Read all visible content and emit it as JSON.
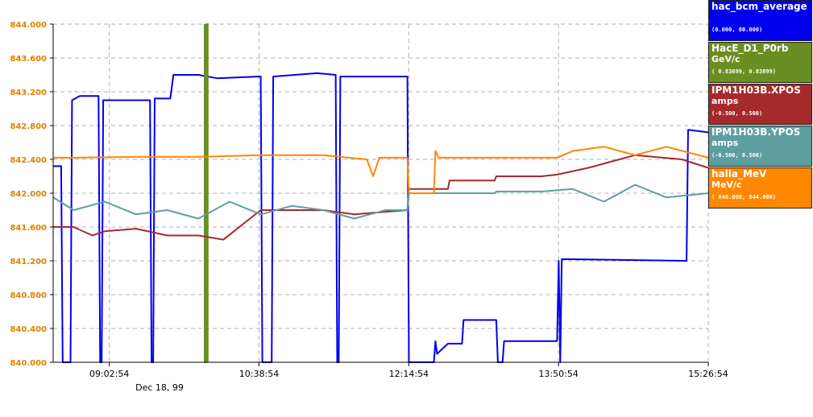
{
  "chart_data": {
    "type": "line",
    "title": "",
    "xlabel": "",
    "ylabel": "",
    "ylim": [
      840.0,
      844.0
    ],
    "yticks": [
      "844.000",
      "843.600",
      "843.200",
      "842.800",
      "842.400",
      "842.000",
      "841.600",
      "841.200",
      "840.800",
      "840.400",
      "840.000"
    ],
    "ytick_color": "#e08000",
    "grid": true,
    "x_range": [
      "08:26:54",
      "15:26:54"
    ],
    "date_label": "Dec 18, 99",
    "xticks": [
      {
        "time": "09:02:54",
        "label": "09:02:54"
      },
      {
        "time": "10:38:54",
        "label": "10:38:54"
      },
      {
        "time": "12:14:54",
        "label": "12:14:54"
      },
      {
        "time": "13:50:54",
        "label": "13:50:54"
      },
      {
        "time": "15:26:54",
        "label": "15:26:54"
      }
    ],
    "legend_position": "right",
    "series": [
      {
        "name": "hac_bcm_average",
        "unit": "",
        "range": "(0.000, 80.000)",
        "color": "#0000ee",
        "points": [
          [
            "08:26:54",
            842.32
          ],
          [
            "08:32:00",
            842.32
          ],
          [
            "08:33:00",
            840.0
          ],
          [
            "08:38:00",
            840.0
          ],
          [
            "08:39:00",
            843.1
          ],
          [
            "08:44:00",
            843.15
          ],
          [
            "08:56:00",
            843.15
          ],
          [
            "08:57:00",
            840.0
          ],
          [
            "08:58:00",
            840.0
          ],
          [
            "08:59:00",
            843.1
          ],
          [
            "09:29:00",
            843.1
          ],
          [
            "09:30:00",
            840.0
          ],
          [
            "09:31:00",
            840.0
          ],
          [
            "09:32:00",
            843.12
          ],
          [
            "09:42:00",
            843.12
          ],
          [
            "09:44:00",
            843.4
          ],
          [
            "10:00:00",
            843.4
          ],
          [
            "10:12:00",
            843.36
          ],
          [
            "10:38:00",
            843.38
          ],
          [
            "10:40:00",
            843.38
          ],
          [
            "10:41:00",
            840.0
          ],
          [
            "10:47:00",
            840.0
          ],
          [
            "10:48:00",
            843.38
          ],
          [
            "11:16:00",
            843.42
          ],
          [
            "11:28:00",
            843.4
          ],
          [
            "11:29:00",
            840.0
          ],
          [
            "11:30:00",
            840.0
          ],
          [
            "11:31:00",
            843.38
          ],
          [
            "12:14:00",
            843.38
          ],
          [
            "12:15:00",
            840.0
          ],
          [
            "12:31:00",
            840.0
          ],
          [
            "12:32:00",
            840.25
          ],
          [
            "12:33:00",
            840.1
          ],
          [
            "12:40:00",
            840.22
          ],
          [
            "12:49:00",
            840.22
          ],
          [
            "12:50:00",
            840.5
          ],
          [
            "13:11:00",
            840.5
          ],
          [
            "13:12:00",
            840.0
          ],
          [
            "13:15:00",
            840.0
          ],
          [
            "13:16:00",
            840.25
          ],
          [
            "13:50:00",
            840.25
          ],
          [
            "13:51:00",
            841.2
          ],
          [
            "13:52:00",
            840.0
          ],
          [
            "13:53:00",
            841.22
          ],
          [
            "15:13:00",
            841.2
          ],
          [
            "15:14:00",
            842.75
          ],
          [
            "15:26:54",
            842.72
          ]
        ]
      },
      {
        "name": "HacE_D1_P0rb",
        "unit": "GeV/c",
        "range": "( 0.83699, 0.83899)",
        "color": "#6b8e23",
        "points": [
          [
            "10:04:00",
            844.0
          ],
          [
            "10:04:00",
            840.0
          ],
          [
            "10:05:00",
            840.0
          ],
          [
            "10:05:00",
            844.0
          ],
          [
            "10:06:00",
            844.0
          ],
          [
            "10:06:00",
            840.0
          ]
        ]
      },
      {
        "name": "IPM1H03B.XPOS",
        "unit": "amps",
        "range": "(-0.500, 0.500)",
        "color": "#a52a2a",
        "points": [
          [
            "08:26:54",
            841.6
          ],
          [
            "08:40:00",
            841.6
          ],
          [
            "08:52:00",
            841.5
          ],
          [
            "09:00:00",
            841.55
          ],
          [
            "09:20:00",
            841.58
          ],
          [
            "09:40:00",
            841.5
          ],
          [
            "10:00:00",
            841.5
          ],
          [
            "10:16:00",
            841.45
          ],
          [
            "10:40:00",
            841.8
          ],
          [
            "11:00:00",
            841.8
          ],
          [
            "11:20:00",
            841.8
          ],
          [
            "11:40:00",
            841.75
          ],
          [
            "12:00:00",
            841.78
          ],
          [
            "12:14:00",
            841.8
          ],
          [
            "12:15:00",
            842.05
          ],
          [
            "12:40:00",
            842.05
          ],
          [
            "12:41:00",
            842.15
          ],
          [
            "13:10:00",
            842.15
          ],
          [
            "13:11:00",
            842.2
          ],
          [
            "13:40:00",
            842.2
          ],
          [
            "13:50:00",
            842.22
          ],
          [
            "14:10:00",
            842.3
          ],
          [
            "14:40:00",
            842.45
          ],
          [
            "15:10:00",
            842.4
          ],
          [
            "15:26:54",
            842.3
          ]
        ]
      },
      {
        "name": "IPM1H03B.YPOS",
        "unit": "amps",
        "range": "(-0.500, 0.500)",
        "color": "#5f9ea0",
        "points": [
          [
            "08:26:54",
            841.95
          ],
          [
            "08:40:00",
            841.8
          ],
          [
            "09:00:00",
            841.9
          ],
          [
            "09:20:00",
            841.75
          ],
          [
            "09:40:00",
            841.8
          ],
          [
            "10:00:00",
            841.7
          ],
          [
            "10:20:00",
            841.9
          ],
          [
            "10:40:00",
            841.75
          ],
          [
            "11:00:00",
            841.85
          ],
          [
            "11:20:00",
            841.8
          ],
          [
            "11:40:00",
            841.7
          ],
          [
            "12:00:00",
            841.8
          ],
          [
            "12:14:00",
            841.8
          ],
          [
            "12:15:00",
            842.0
          ],
          [
            "12:40:00",
            842.0
          ],
          [
            "12:41:00",
            842.0
          ],
          [
            "13:10:00",
            842.0
          ],
          [
            "13:11:00",
            842.02
          ],
          [
            "13:40:00",
            842.02
          ],
          [
            "14:00:00",
            842.05
          ],
          [
            "14:20:00",
            841.9
          ],
          [
            "14:40:00",
            842.1
          ],
          [
            "15:00:00",
            841.95
          ],
          [
            "15:26:54",
            842.0
          ]
        ]
      },
      {
        "name": "halla_MeV",
        "unit": "MeV/c",
        "range": "( 840.000, 844.000)",
        "color": "#ff8800",
        "points": [
          [
            "08:26:54",
            842.42
          ],
          [
            "08:40:00",
            842.42
          ],
          [
            "09:20:00",
            842.43
          ],
          [
            "10:00:00",
            842.43
          ],
          [
            "10:40:00",
            842.45
          ],
          [
            "11:20:00",
            842.45
          ],
          [
            "11:48:00",
            842.4
          ],
          [
            "11:52:00",
            842.2
          ],
          [
            "11:56:00",
            842.42
          ],
          [
            "12:14:00",
            842.42
          ],
          [
            "12:15:00",
            842.0
          ],
          [
            "12:31:00",
            842.0
          ],
          [
            "12:32:00",
            842.5
          ],
          [
            "12:34:00",
            842.42
          ],
          [
            "13:50:00",
            842.42
          ],
          [
            "14:00:00",
            842.5
          ],
          [
            "14:20:00",
            842.55
          ],
          [
            "14:40:00",
            842.45
          ],
          [
            "15:00:00",
            842.55
          ],
          [
            "15:26:54",
            842.42
          ]
        ]
      }
    ]
  }
}
